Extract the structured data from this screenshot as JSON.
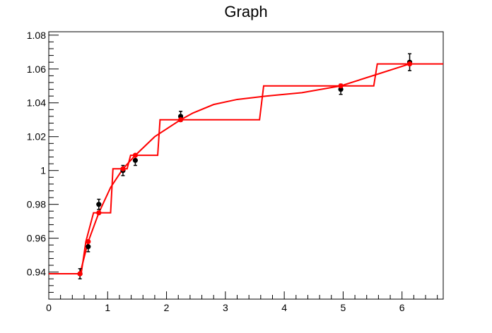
{
  "chart_data": {
    "type": "scatter",
    "title": "Graph",
    "xlabel": "",
    "ylabel": "",
    "xlim": [
      0,
      6.7
    ],
    "ylim": [
      0.924,
      1.082
    ],
    "grid": false,
    "x_ticks": [
      0,
      1,
      2,
      3,
      4,
      5,
      6
    ],
    "y_ticks": [
      0.94,
      0.96,
      0.98,
      1,
      1.02,
      1.04,
      1.06,
      1.08
    ],
    "y_tick_labels": [
      "0.94",
      "0.96",
      "0.98",
      "1",
      "1.02",
      "1.04",
      "1.06",
      "1.08"
    ],
    "data_points": {
      "color": "#000000",
      "points": [
        {
          "x": 0.53,
          "y": 0.939,
          "err": 0.003
        },
        {
          "x": 0.67,
          "y": 0.955,
          "err": 0.003
        },
        {
          "x": 0.85,
          "y": 0.98,
          "err": 0.003
        },
        {
          "x": 1.26,
          "y": 1.0,
          "err": 0.003
        },
        {
          "x": 1.47,
          "y": 1.006,
          "err": 0.003
        },
        {
          "x": 2.24,
          "y": 1.032,
          "err": 0.003
        },
        {
          "x": 4.96,
          "y": 1.048,
          "err": 0.003
        },
        {
          "x": 6.13,
          "y": 1.064,
          "err": 0.005
        }
      ]
    },
    "fit_points": {
      "color": "#ff0000",
      "points": [
        {
          "x": 0.53,
          "y": 0.939
        },
        {
          "x": 0.67,
          "y": 0.958
        },
        {
          "x": 0.85,
          "y": 0.975
        },
        {
          "x": 1.26,
          "y": 1.001
        },
        {
          "x": 1.47,
          "y": 1.009
        },
        {
          "x": 2.24,
          "y": 1.03
        },
        {
          "x": 4.96,
          "y": 1.05
        },
        {
          "x": 6.13,
          "y": 1.063
        }
      ]
    },
    "smooth_curve": {
      "color": "#ff0000",
      "points": [
        [
          0.53,
          0.939
        ],
        [
          0.67,
          0.958
        ],
        [
          0.85,
          0.975
        ],
        [
          1.05,
          0.99
        ],
        [
          1.26,
          1.001
        ],
        [
          1.47,
          1.009
        ],
        [
          1.8,
          1.02
        ],
        [
          2.24,
          1.03
        ],
        [
          2.45,
          1.034
        ],
        [
          2.8,
          1.039
        ],
        [
          3.2,
          1.042
        ],
        [
          3.7,
          1.044
        ],
        [
          4.3,
          1.046
        ],
        [
          4.96,
          1.05
        ],
        [
          5.5,
          1.056
        ],
        [
          6.13,
          1.063
        ]
      ]
    },
    "step_curve": {
      "color": "#ff0000",
      "points": [
        [
          0.0,
          0.939
        ],
        [
          0.55,
          0.939
        ],
        [
          0.63,
          0.958
        ],
        [
          0.76,
          0.975
        ],
        [
          1.05,
          0.975
        ],
        [
          1.09,
          1.001
        ],
        [
          1.33,
          1.001
        ],
        [
          1.39,
          1.009
        ],
        [
          1.85,
          1.009
        ],
        [
          1.89,
          1.03
        ],
        [
          3.58,
          1.03
        ],
        [
          3.65,
          1.05
        ],
        [
          5.52,
          1.05
        ],
        [
          5.58,
          1.063
        ],
        [
          6.7,
          1.063
        ]
      ]
    }
  }
}
